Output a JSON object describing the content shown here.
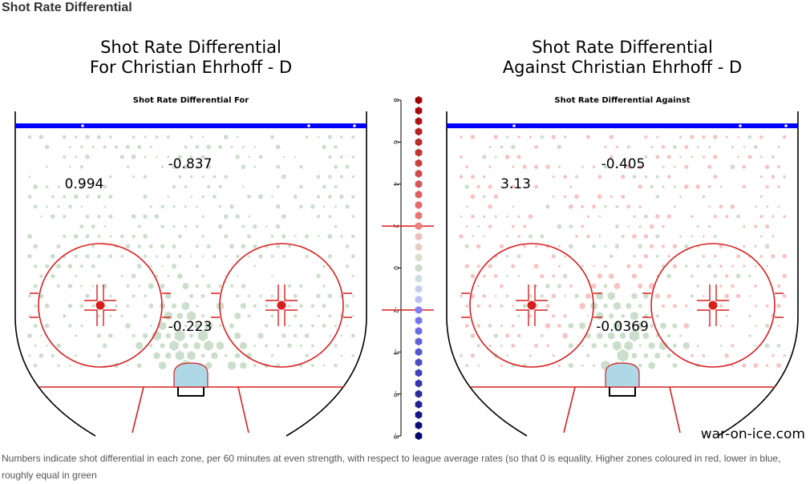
{
  "page": {
    "section_title": "Shot Rate Differential",
    "caption": "Numbers indicate shot differential in each zone, per 60 minutes at even strength, with respect to league average rates (so that 0 is equality. Higher zones coloured in red, lower in blue, roughly equal in green",
    "watermark": "war-on-ice.com"
  },
  "chart_data": [
    {
      "type": "heatmap",
      "title": "Shot Rate Differential\nFor Christian Ehrhoff - D",
      "subtitle": "Shot Rate Differential For",
      "zones": [
        {
          "name": "left-point",
          "value": 0.994
        },
        {
          "name": "high-slot",
          "value": -0.837
        },
        {
          "name": "low-slot",
          "value": -0.223
        }
      ]
    },
    {
      "type": "heatmap",
      "title": "Shot Rate Differential\nAgainst Christian Ehrhoff - D",
      "subtitle": "Shot Rate Differential Against",
      "zones": [
        {
          "name": "left-point",
          "value": 3.13
        },
        {
          "name": "high-slot",
          "value": -0.405
        },
        {
          "name": "low-slot",
          "value": -0.0369
        }
      ]
    },
    {
      "type": "scatter",
      "title": "",
      "ylim": [
        -8,
        8
      ],
      "yticks": [
        "8",
        "6",
        "4",
        "2",
        "0",
        "-2",
        "-4",
        "-6",
        "-8"
      ],
      "threshold_lines": [
        2,
        -2
      ],
      "values": [
        8,
        7.5,
        7,
        6.5,
        6,
        5.5,
        5,
        4.5,
        4,
        3.5,
        3,
        2.5,
        2,
        1.5,
        1,
        0.5,
        0,
        -0.5,
        -1,
        -1.5,
        -2,
        -2.5,
        -3,
        -3.5,
        -4,
        -4.5,
        -5,
        -5.5,
        -6,
        -6.5,
        -7,
        -7.5,
        -8
      ]
    }
  ],
  "colors": {
    "high": "#a10000",
    "mid_high": "#f08080",
    "neutral": "#c8dcc8",
    "mid_low": "#8080ff",
    "low": "#00006f",
    "rink_line": "#d81f1f",
    "blue_line": "#0000ff",
    "crease": "#aed8e6"
  }
}
